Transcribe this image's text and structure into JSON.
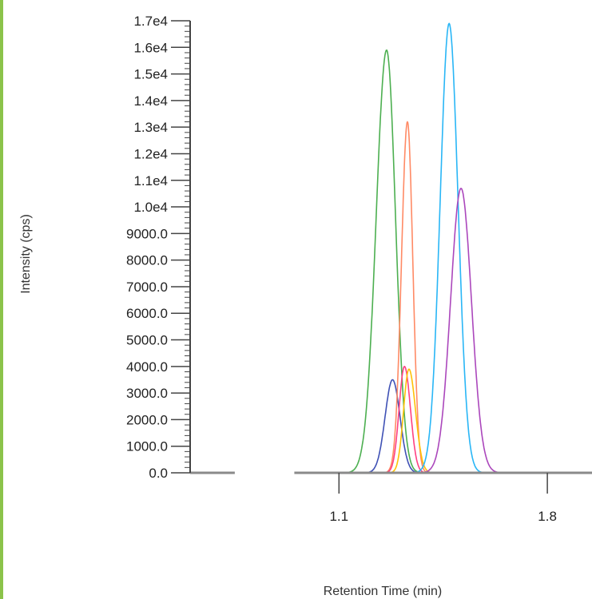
{
  "page": {
    "left_border_color": "#8bc34a"
  },
  "chart_data": {
    "type": "line",
    "title": "",
    "xlabel": "Retention Time (min)",
    "ylabel": "Intensity (cps)",
    "xlim": [
      0.6,
      1.95
    ],
    "ylim": [
      0,
      17000
    ],
    "x_ticks": [
      {
        "value": 1.1,
        "label": "1.1"
      },
      {
        "value": 1.8,
        "label": "1.8"
      }
    ],
    "y_ticks": [
      {
        "value": 0,
        "label": "0.0"
      },
      {
        "value": 1000,
        "label": "1000.0"
      },
      {
        "value": 2000,
        "label": "2000.0"
      },
      {
        "value": 3000,
        "label": "3000.0"
      },
      {
        "value": 4000,
        "label": "4000.0"
      },
      {
        "value": 5000,
        "label": "5000.0"
      },
      {
        "value": 6000,
        "label": "6000.0"
      },
      {
        "value": 7000,
        "label": "7000.0"
      },
      {
        "value": 8000,
        "label": "8000.0"
      },
      {
        "value": 9000,
        "label": "9000.0"
      },
      {
        "value": 10000,
        "label": "1.0e4"
      },
      {
        "value": 11000,
        "label": "1.1e4"
      },
      {
        "value": 12000,
        "label": "1.2e4"
      },
      {
        "value": 13000,
        "label": "1.3e4"
      },
      {
        "value": 14000,
        "label": "1.4e4"
      },
      {
        "value": 15000,
        "label": "1.5e4"
      },
      {
        "value": 16000,
        "label": "1.6e4"
      },
      {
        "value": 17000,
        "label": "1.7e4"
      }
    ],
    "minor_ticks_per_major": 5,
    "grid": false,
    "legend": "none",
    "baseline_segments": [
      [
        0.6,
        0.75
      ],
      [
        0.95,
        1.95
      ]
    ],
    "baseline_color": "#8a8a8a",
    "axis_color": "#444444",
    "series": [
      {
        "color": "#4caf50",
        "peak_x": 1.26,
        "peak_y": 15900,
        "left_width": 0.035,
        "right_width": 0.03
      },
      {
        "color": "#3f51b5",
        "peak_x": 1.28,
        "peak_y": 3500,
        "left_width": 0.025,
        "right_width": 0.025
      },
      {
        "color": "#ff8a65",
        "peak_x": 1.33,
        "peak_y": 13200,
        "left_width": 0.02,
        "right_width": 0.018
      },
      {
        "color": "#ff4081",
        "peak_x": 1.32,
        "peak_y": 4000,
        "left_width": 0.018,
        "right_width": 0.02
      },
      {
        "color": "#ffc107",
        "peak_x": 1.335,
        "peak_y": 3900,
        "left_width": 0.018,
        "right_width": 0.022
      },
      {
        "color": "#29b6f6",
        "peak_x": 1.47,
        "peak_y": 16900,
        "left_width": 0.03,
        "right_width": 0.03
      },
      {
        "color": "#ab47bc",
        "peak_x": 1.51,
        "peak_y": 10700,
        "left_width": 0.035,
        "right_width": 0.035
      }
    ]
  }
}
